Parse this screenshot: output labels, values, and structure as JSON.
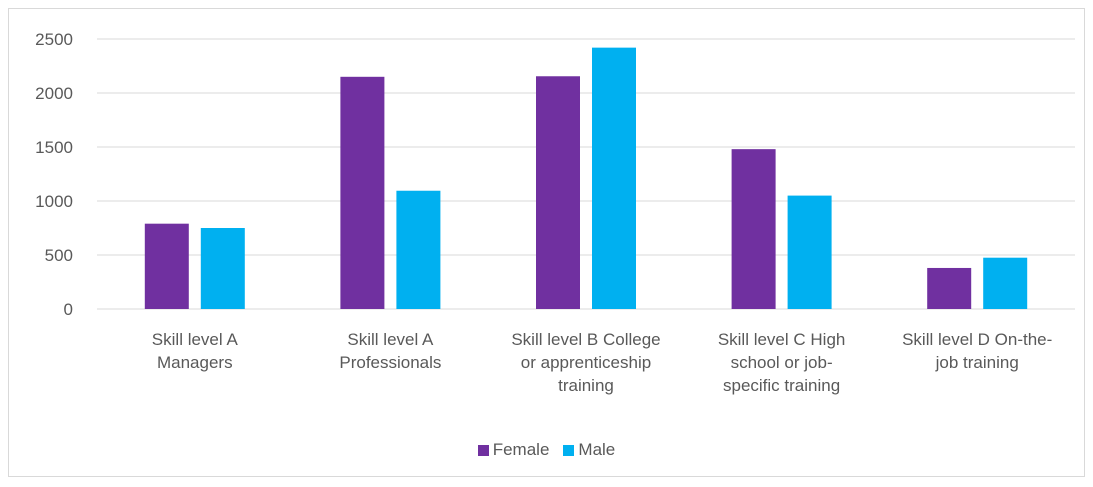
{
  "chart_data": {
    "type": "bar",
    "categories": [
      [
        "Skill level A",
        "Managers"
      ],
      [
        "Skill level A",
        "Professionals"
      ],
      [
        "Skill level B College",
        "or apprenticeship",
        "training"
      ],
      [
        "Skill level C High",
        "school or job-",
        "specific training"
      ],
      [
        "Skill level D On-the-",
        "job training"
      ]
    ],
    "series": [
      {
        "name": "Female",
        "color": "#7030a0",
        "values": [
          790,
          2150,
          2155,
          1480,
          380
        ]
      },
      {
        "name": "Male",
        "color": "#00b0f0",
        "values": [
          750,
          1095,
          2420,
          1050,
          475
        ]
      }
    ],
    "ylim": [
      0,
      2500
    ],
    "yticks": [
      0,
      500,
      1000,
      1500,
      2000,
      2500
    ],
    "grid": true,
    "legend_position": "bottom"
  }
}
